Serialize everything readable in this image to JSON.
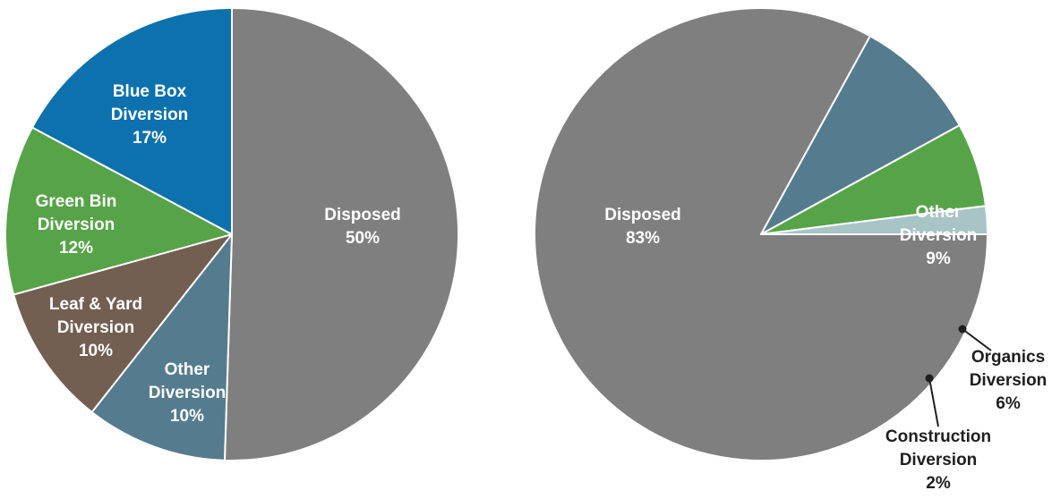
{
  "chart_data": [
    {
      "type": "pie",
      "slices": [
        {
          "label": [
            "Disposed"
          ],
          "value": 50,
          "display": "50%",
          "color": "#7f7f7f"
        },
        {
          "label": [
            "Other",
            "Diversion"
          ],
          "value": 10,
          "display": "10%",
          "color": "#557b8e"
        },
        {
          "label": [
            "Leaf & Yard",
            "Diversion"
          ],
          "value": 10,
          "display": "10%",
          "color": "#725f52"
        },
        {
          "label": [
            "Green Bin",
            "Diversion"
          ],
          "value": 12,
          "display": "12%",
          "color": "#56a447"
        },
        {
          "label": [
            "Blue Box",
            "Diversion"
          ],
          "value": 17,
          "display": "17%",
          "color": "#0c71ad"
        }
      ]
    },
    {
      "type": "pie",
      "slices": [
        {
          "label": [
            "Disposed"
          ],
          "value": 83,
          "display": "83%",
          "color": "#7f7f7f"
        },
        {
          "label": [
            "Other",
            "Diversion"
          ],
          "value": 9,
          "display": "9%",
          "color": "#557b8e"
        },
        {
          "label": [
            "Organics",
            "Diversion"
          ],
          "value": 6,
          "display": "6%",
          "color": "#56a447"
        },
        {
          "label": [
            "Construction",
            "Diversion"
          ],
          "value": 2,
          "display": "2%",
          "color": "#a8c4c6"
        }
      ]
    }
  ]
}
